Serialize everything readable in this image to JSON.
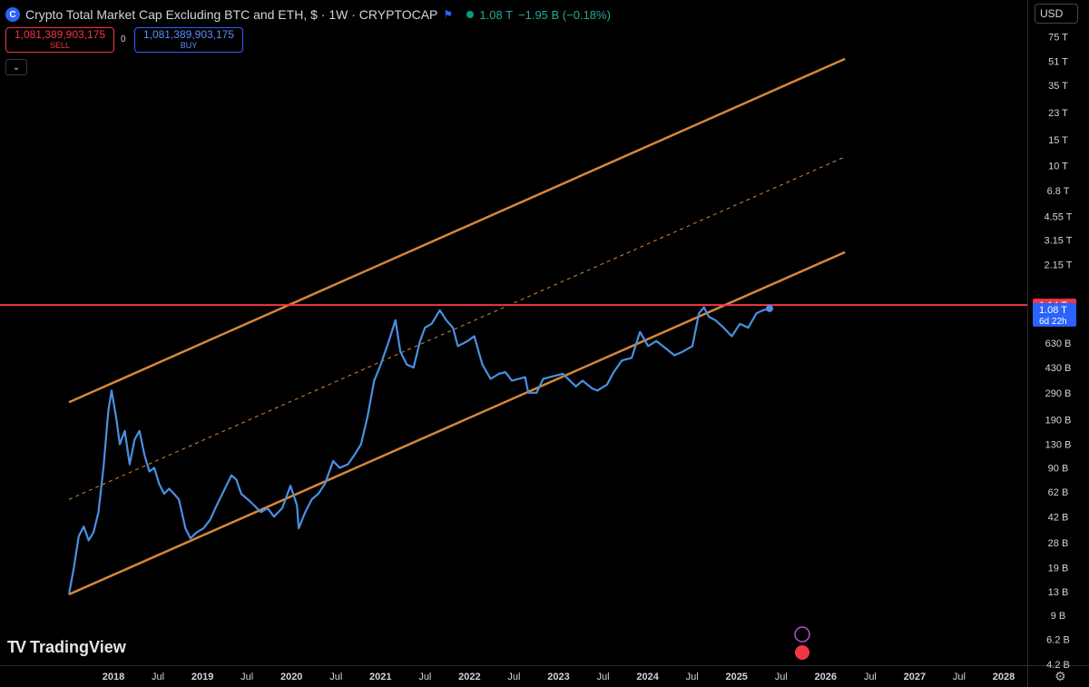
{
  "header": {
    "logo_glyph": "C",
    "title": "Crypto Total Market Cap Excluding BTC and ETH, $ · 1W · CRYPTOCAP",
    "flag_icon": "flag-icon",
    "last_value": "1.08 T",
    "change": "−1.95 B (−0.18%)",
    "change_color": "#22ab94"
  },
  "trade": {
    "sell_value": "1,081,389,903,175",
    "sell_label": "SELL",
    "spread": "0",
    "buy_value": "1,081,389,903,175",
    "buy_label": "BUY",
    "collapse_icon": "chevron-down-icon"
  },
  "currency": "USD",
  "watermark": "TradingView",
  "colors": {
    "price": "#4a90e2",
    "channel": "#d6873a",
    "horizontal": "#f23645",
    "badge_red": "#f23645",
    "badge_blue": "#2962ff"
  },
  "chart_data": {
    "type": "line",
    "scale": "log",
    "ylim": [
      4200000000.0,
      82000000000000.0
    ],
    "xlim": [
      "2017-07-10",
      "2028-06-10"
    ],
    "x_ticks": [
      "2018",
      "Jul",
      "2019",
      "Jul",
      "2020",
      "Jul",
      "2021",
      "Jul",
      "2022",
      "Jul",
      "2023",
      "Jul",
      "2024",
      "Jul",
      "2025",
      "Jul",
      "2026",
      "Jul",
      "2027",
      "Jul",
      "2028"
    ],
    "y_ticks": [
      {
        "label": "75 T",
        "v": 75000000000000.0
      },
      {
        "label": "51 T",
        "v": 51000000000000.0
      },
      {
        "label": "35 T",
        "v": 35000000000000.0
      },
      {
        "label": "23 T",
        "v": 23000000000000.0
      },
      {
        "label": "15 T",
        "v": 15000000000000.0
      },
      {
        "label": "10 T",
        "v": 10000000000000.0
      },
      {
        "label": "6.8 T",
        "v": 6800000000000.0
      },
      {
        "label": "4.55 T",
        "v": 4550000000000.0
      },
      {
        "label": "3.15 T",
        "v": 3150000000000.0
      },
      {
        "label": "2.15 T",
        "v": 2150000000000.0
      },
      {
        "label": "630 B",
        "v": 630000000000.0
      },
      {
        "label": "430 B",
        "v": 430000000000.0
      },
      {
        "label": "290 B",
        "v": 290000000000.0
      },
      {
        "label": "190 B",
        "v": 190000000000.0
      },
      {
        "label": "130 B",
        "v": 130000000000.0
      },
      {
        "label": "90 B",
        "v": 90000000000.0
      },
      {
        "label": "62 B",
        "v": 62000000000.0
      },
      {
        "label": "42 B",
        "v": 42000000000.0
      },
      {
        "label": "28 B",
        "v": 28000000000.0
      },
      {
        "label": "19 B",
        "v": 19000000000.0
      },
      {
        "label": "13 B",
        "v": 13000000000.0
      },
      {
        "label": "9 B",
        "v": 9000000000.0
      },
      {
        "label": "6.2 B",
        "v": 6200000000.0
      },
      {
        "label": "4.2 B",
        "v": 4200000000.0
      }
    ],
    "price_labels": {
      "horizontal_line": "1.14 T",
      "last": "1.08 T",
      "countdown": "6d 22h"
    },
    "series": [
      {
        "type": "line",
        "values": [
          [
            "2017-07-10",
            12500000000.0
          ],
          [
            "2017-07-31",
            19000000000.0
          ],
          [
            "2017-08-21",
            31000000000.0
          ],
          [
            "2017-09-11",
            36000000000.0
          ],
          [
            "2017-10-02",
            29000000000.0
          ],
          [
            "2017-10-23",
            33000000000.0
          ],
          [
            "2017-11-13",
            45000000000.0
          ],
          [
            "2017-12-04",
            90000000000.0
          ],
          [
            "2017-12-25",
            220000000000.0
          ],
          [
            "2018-01-08",
            300000000000.0
          ],
          [
            "2018-01-29",
            190000000000.0
          ],
          [
            "2018-02-12",
            130000000000.0
          ],
          [
            "2018-03-05",
            160000000000.0
          ],
          [
            "2018-03-26",
            95000000000.0
          ],
          [
            "2018-04-16",
            140000000000.0
          ],
          [
            "2018-05-07",
            160000000000.0
          ],
          [
            "2018-05-28",
            110000000000.0
          ],
          [
            "2018-06-18",
            85000000000.0
          ],
          [
            "2018-07-09",
            90000000000.0
          ],
          [
            "2018-07-30",
            70000000000.0
          ],
          [
            "2018-08-20",
            60000000000.0
          ],
          [
            "2018-09-10",
            65000000000.0
          ],
          [
            "2018-10-01",
            60000000000.0
          ],
          [
            "2018-10-22",
            55000000000.0
          ],
          [
            "2018-11-19",
            35000000000.0
          ],
          [
            "2018-12-10",
            30000000000.0
          ],
          [
            "2019-01-07",
            33000000000.0
          ],
          [
            "2019-02-04",
            35000000000.0
          ],
          [
            "2019-03-04",
            40000000000.0
          ],
          [
            "2019-04-01",
            50000000000.0
          ],
          [
            "2019-05-06",
            65000000000.0
          ],
          [
            "2019-06-03",
            80000000000.0
          ],
          [
            "2019-06-24",
            75000000000.0
          ],
          [
            "2019-07-15",
            60000000000.0
          ],
          [
            "2019-08-12",
            55000000000.0
          ],
          [
            "2019-09-09",
            50000000000.0
          ],
          [
            "2019-10-07",
            45000000000.0
          ],
          [
            "2019-11-04",
            48000000000.0
          ],
          [
            "2019-12-02",
            42000000000.0
          ],
          [
            "2020-01-06",
            48000000000.0
          ],
          [
            "2020-02-10",
            68000000000.0
          ],
          [
            "2020-03-09",
            50000000000.0
          ],
          [
            "2020-03-16",
            35000000000.0
          ],
          [
            "2020-04-13",
            45000000000.0
          ],
          [
            "2020-05-11",
            55000000000.0
          ],
          [
            "2020-06-08",
            60000000000.0
          ],
          [
            "2020-07-06",
            70000000000.0
          ],
          [
            "2020-08-10",
            100000000000.0
          ],
          [
            "2020-09-07",
            90000000000.0
          ],
          [
            "2020-10-12",
            95000000000.0
          ],
          [
            "2020-11-09",
            110000000000.0
          ],
          [
            "2020-12-07",
            130000000000.0
          ],
          [
            "2021-01-04",
            200000000000.0
          ],
          [
            "2021-02-01",
            350000000000.0
          ],
          [
            "2021-03-01",
            450000000000.0
          ],
          [
            "2021-04-05",
            650000000000.0
          ],
          [
            "2021-05-03",
            900000000000.0
          ],
          [
            "2021-05-24",
            550000000000.0
          ],
          [
            "2021-06-21",
            450000000000.0
          ],
          [
            "2021-07-19",
            430000000000.0
          ],
          [
            "2021-08-16",
            650000000000.0
          ],
          [
            "2021-09-06",
            800000000000.0
          ],
          [
            "2021-10-04",
            850000000000.0
          ],
          [
            "2021-11-08",
            1050000000000.0
          ],
          [
            "2021-12-06",
            900000000000.0
          ],
          [
            "2022-01-03",
            800000000000.0
          ],
          [
            "2022-01-24",
            600000000000.0
          ],
          [
            "2022-03-07",
            650000000000.0
          ],
          [
            "2022-04-04",
            700000000000.0
          ],
          [
            "2022-05-09",
            450000000000.0
          ],
          [
            "2022-06-13",
            360000000000.0
          ],
          [
            "2022-07-18",
            390000000000.0
          ],
          [
            "2022-08-15",
            400000000000.0
          ],
          [
            "2022-09-12",
            350000000000.0
          ],
          [
            "2022-11-07",
            370000000000.0
          ],
          [
            "2022-11-21",
            290000000000.0
          ],
          [
            "2022-12-26",
            290000000000.0
          ],
          [
            "2023-01-23",
            360000000000.0
          ],
          [
            "2023-02-20",
            370000000000.0
          ],
          [
            "2023-04-17",
            390000000000.0
          ],
          [
            "2023-06-12",
            320000000000.0
          ],
          [
            "2023-07-10",
            350000000000.0
          ],
          [
            "2023-08-21",
            310000000000.0
          ],
          [
            "2023-09-11",
            300000000000.0
          ],
          [
            "2023-10-23",
            330000000000.0
          ],
          [
            "2023-11-20",
            400000000000.0
          ],
          [
            "2023-12-25",
            480000000000.0
          ],
          [
            "2024-02-05",
            500000000000.0
          ],
          [
            "2024-03-11",
            750000000000.0
          ],
          [
            "2024-04-15",
            600000000000.0
          ],
          [
            "2024-05-20",
            650000000000.0
          ],
          [
            "2024-06-17",
            600000000000.0
          ],
          [
            "2024-08-05",
            520000000000.0
          ],
          [
            "2024-09-09",
            550000000000.0
          ],
          [
            "2024-10-21",
            600000000000.0
          ],
          [
            "2024-11-18",
            1000000000000.0
          ],
          [
            "2024-12-09",
            1100000000000.0
          ],
          [
            "2024-12-30",
            950000000000.0
          ],
          [
            "2025-01-27",
            900000000000.0
          ],
          [
            "2025-03-03",
            800000000000.0
          ],
          [
            "2025-04-07",
            700000000000.0
          ],
          [
            "2025-05-12",
            850000000000.0
          ],
          [
            "2025-06-16",
            800000000000.0
          ],
          [
            "2025-07-21",
            1000000000000.0
          ],
          [
            "2025-08-18",
            1050000000000.0
          ],
          [
            "2025-09-15",
            1080000000000.0
          ]
        ]
      }
    ],
    "annotations": [
      {
        "type": "channel-upper",
        "points": [
          [
            "2017-07-10",
            250000000000.0
          ],
          [
            "2026-08-03",
            53000000000000.0
          ]
        ]
      },
      {
        "type": "channel-mid",
        "dashed": true,
        "points": [
          [
            "2017-07-10",
            55000000000.0
          ],
          [
            "2026-08-03",
            11500000000000.0
          ]
        ]
      },
      {
        "type": "channel-lower",
        "points": [
          [
            "2017-07-10",
            12500000000.0
          ],
          [
            "2026-08-03",
            2600000000000.0
          ]
        ]
      },
      {
        "type": "horizontal",
        "value": 1140000000000.0
      }
    ]
  }
}
